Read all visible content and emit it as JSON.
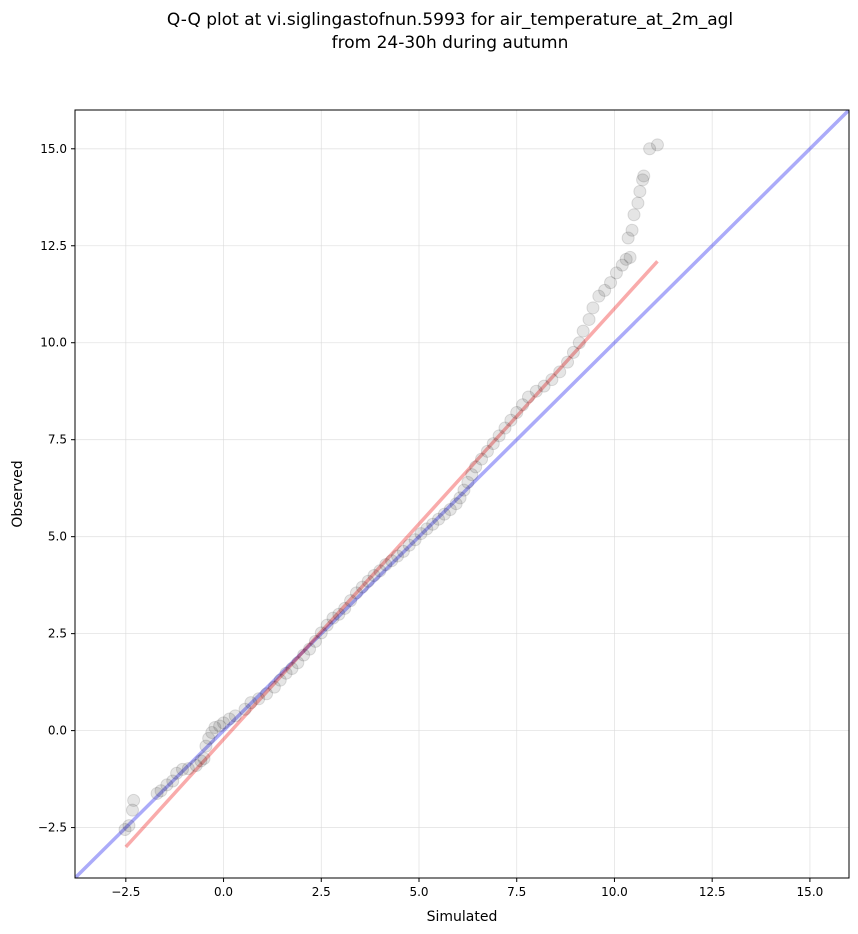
{
  "chart_data": {
    "type": "scatter",
    "title_lines": [
      "Q-Q plot at vi.siglingastofnun.5993 for air_temperature_at_2m_agl",
      "from 24-30h during autumn"
    ],
    "xlabel": "Simulated",
    "ylabel": "Observed",
    "xlim": [
      -3.8,
      16.0
    ],
    "ylim": [
      -3.8,
      16.0
    ],
    "xticks": [
      -2.5,
      0.0,
      2.5,
      5.0,
      7.5,
      10.0,
      12.5,
      15.0
    ],
    "yticks": [
      -2.5,
      0.0,
      2.5,
      5.0,
      7.5,
      10.0,
      12.5,
      15.0
    ],
    "xtick_labels": [
      "−2.5",
      "0.0",
      "2.5",
      "5.0",
      "7.5",
      "10.0",
      "12.5",
      "15.0"
    ],
    "ytick_labels": [
      "−2.5",
      "0.0",
      "2.5",
      "5.0",
      "7.5",
      "10.0",
      "12.5",
      "15.0"
    ],
    "grid": true,
    "reference_line": {
      "points": [
        [
          -3.8,
          -3.8
        ],
        [
          16.0,
          16.0
        ]
      ],
      "color": "#0000ee"
    },
    "fit_line": {
      "points": [
        [
          -2.5,
          -3.0
        ],
        [
          11.1,
          12.1
        ]
      ],
      "color": "#ee0000"
    },
    "point_color": "#000000",
    "q_points": [
      [
        -2.52,
        -2.55
      ],
      [
        -2.42,
        -2.45
      ],
      [
        -2.33,
        -2.05
      ],
      [
        -2.3,
        -1.8
      ],
      [
        -1.7,
        -1.62
      ],
      [
        -1.6,
        -1.55
      ],
      [
        -1.45,
        -1.4
      ],
      [
        -1.3,
        -1.3
      ],
      [
        -1.2,
        -1.1
      ],
      [
        -1.05,
        -1.0
      ],
      [
        -0.9,
        -0.98
      ],
      [
        -0.7,
        -0.9
      ],
      [
        -0.58,
        -0.78
      ],
      [
        -0.5,
        -0.72
      ],
      [
        -0.45,
        -0.4
      ],
      [
        -0.38,
        -0.2
      ],
      [
        -0.3,
        -0.05
      ],
      [
        -0.22,
        0.08
      ],
      [
        -0.1,
        0.12
      ],
      [
        0.0,
        0.2
      ],
      [
        0.15,
        0.3
      ],
      [
        0.3,
        0.38
      ],
      [
        0.55,
        0.55
      ],
      [
        0.7,
        0.72
      ],
      [
        0.9,
        0.82
      ],
      [
        1.1,
        0.95
      ],
      [
        1.3,
        1.12
      ],
      [
        1.45,
        1.3
      ],
      [
        1.6,
        1.48
      ],
      [
        1.75,
        1.6
      ],
      [
        1.9,
        1.75
      ],
      [
        2.05,
        1.95
      ],
      [
        2.2,
        2.1
      ],
      [
        2.35,
        2.3
      ],
      [
        2.5,
        2.52
      ],
      [
        2.65,
        2.72
      ],
      [
        2.8,
        2.9
      ],
      [
        2.95,
        3.0
      ],
      [
        3.1,
        3.15
      ],
      [
        3.25,
        3.35
      ],
      [
        3.4,
        3.55
      ],
      [
        3.55,
        3.7
      ],
      [
        3.7,
        3.85
      ],
      [
        3.85,
        4.0
      ],
      [
        4.0,
        4.12
      ],
      [
        4.15,
        4.28
      ],
      [
        4.3,
        4.38
      ],
      [
        4.45,
        4.5
      ],
      [
        4.6,
        4.62
      ],
      [
        4.75,
        4.78
      ],
      [
        4.9,
        4.92
      ],
      [
        5.05,
        5.08
      ],
      [
        5.2,
        5.2
      ],
      [
        5.35,
        5.32
      ],
      [
        5.5,
        5.45
      ],
      [
        5.65,
        5.58
      ],
      [
        5.8,
        5.7
      ],
      [
        5.95,
        5.85
      ],
      [
        6.05,
        6.0
      ],
      [
        6.15,
        6.2
      ],
      [
        6.25,
        6.4
      ],
      [
        6.35,
        6.6
      ],
      [
        6.45,
        6.8
      ],
      [
        6.6,
        7.0
      ],
      [
        6.75,
        7.2
      ],
      [
        6.9,
        7.4
      ],
      [
        7.05,
        7.6
      ],
      [
        7.2,
        7.8
      ],
      [
        7.35,
        8.0
      ],
      [
        7.5,
        8.2
      ],
      [
        7.65,
        8.4
      ],
      [
        7.8,
        8.6
      ],
      [
        8.0,
        8.75
      ],
      [
        8.2,
        8.88
      ],
      [
        8.4,
        9.05
      ],
      [
        8.6,
        9.25
      ],
      [
        8.8,
        9.5
      ],
      [
        8.95,
        9.75
      ],
      [
        9.1,
        10.0
      ],
      [
        9.2,
        10.3
      ],
      [
        9.35,
        10.6
      ],
      [
        9.45,
        10.9
      ],
      [
        9.6,
        11.2
      ],
      [
        9.75,
        11.35
      ],
      [
        9.9,
        11.55
      ],
      [
        10.05,
        11.8
      ],
      [
        10.2,
        12.0
      ],
      [
        10.3,
        12.15
      ],
      [
        10.4,
        12.2
      ],
      [
        10.35,
        12.7
      ],
      [
        10.45,
        12.9
      ],
      [
        10.5,
        13.3
      ],
      [
        10.6,
        13.6
      ],
      [
        10.65,
        13.9
      ],
      [
        10.72,
        14.2
      ],
      [
        10.75,
        14.3
      ],
      [
        10.9,
        15.0
      ],
      [
        11.1,
        15.1
      ]
    ]
  }
}
